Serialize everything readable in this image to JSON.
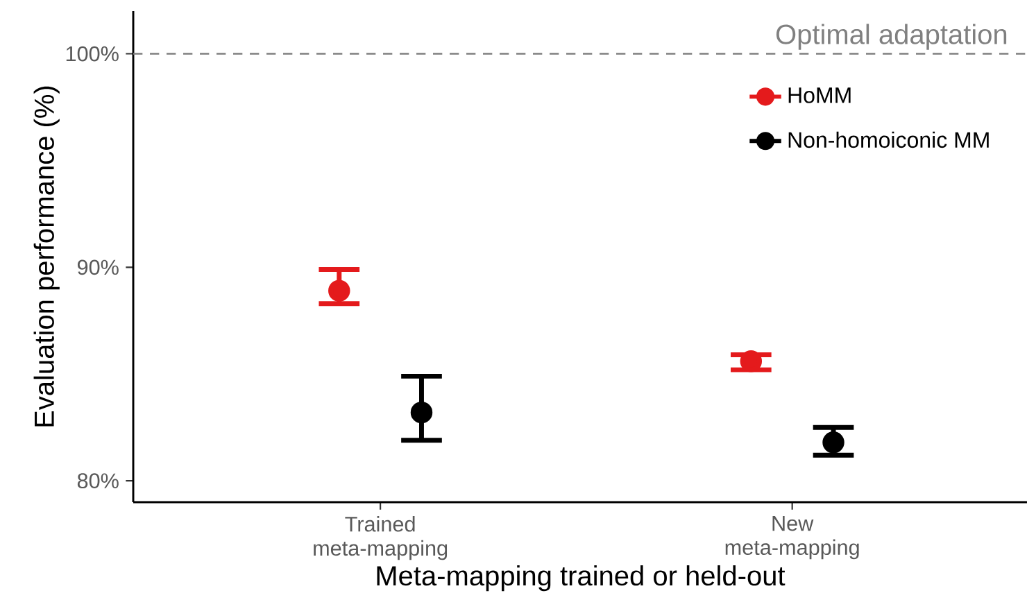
{
  "chart_data": {
    "type": "scatter",
    "xlabel": "Meta-mapping trained or held-out",
    "ylabel": "Evaluation performance (%)",
    "categories": [
      "Trained\nmeta-mapping",
      "New\nmeta-mapping"
    ],
    "series": [
      {
        "name": "HoMM",
        "color": "#e41a1c",
        "values": [
          88.9,
          85.6
        ],
        "errors": [
          [
            88.3,
            89.9
          ],
          [
            85.2,
            85.9
          ]
        ]
      },
      {
        "name": "Non-homoiconic MM",
        "color": "#000000",
        "values": [
          83.2,
          81.8
        ],
        "errors": [
          [
            81.9,
            84.9
          ],
          [
            81.2,
            82.5
          ]
        ]
      }
    ],
    "ylim": [
      79,
      102
    ],
    "yticks": [
      {
        "value": 80,
        "label": "80%"
      },
      {
        "value": 90,
        "label": "90%"
      },
      {
        "value": 100,
        "label": "100%"
      }
    ],
    "ref_lines": [
      {
        "axis": "y",
        "value": 100,
        "label": "Optimal adaptation",
        "color": "#808080",
        "line_style": "dashed"
      }
    ],
    "legend": "top right",
    "grid": false
  }
}
